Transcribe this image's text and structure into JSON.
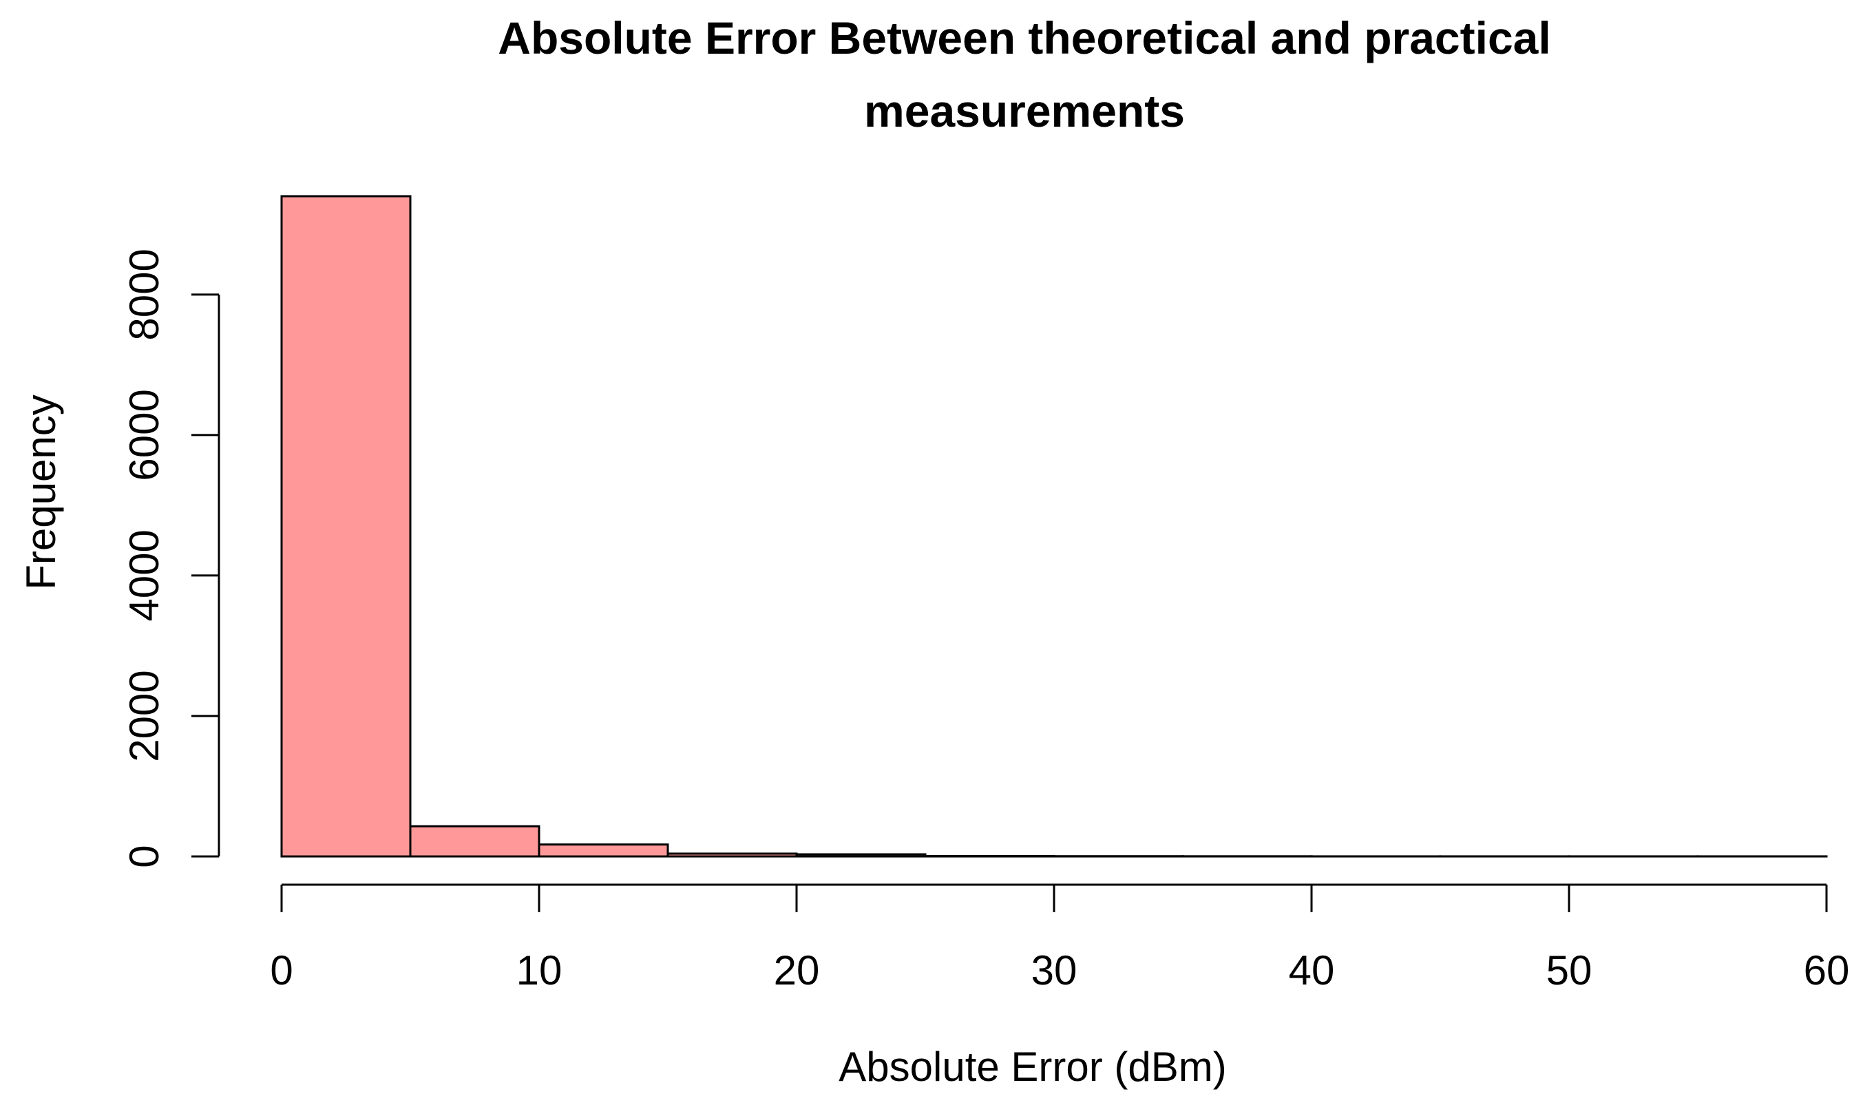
{
  "chart_data": {
    "type": "bar",
    "title": [
      "Absolute Error Between theoretical and practical",
      "measurements"
    ],
    "xlabel": "Absolute Error (dBm)",
    "ylabel": "Frequency",
    "bins": [
      {
        "x0": 0,
        "x1": 5,
        "value": 9400
      },
      {
        "x0": 5,
        "x1": 10,
        "value": 430
      },
      {
        "x0": 10,
        "x1": 15,
        "value": 170
      },
      {
        "x0": 15,
        "x1": 20,
        "value": 40
      },
      {
        "x0": 20,
        "x1": 25,
        "value": 30
      },
      {
        "x0": 25,
        "x1": 30,
        "value": 5
      },
      {
        "x0": 30,
        "x1": 35,
        "value": 3
      },
      {
        "x0": 35,
        "x1": 40,
        "value": 2
      },
      {
        "x0": 40,
        "x1": 45,
        "value": 1
      },
      {
        "x0": 45,
        "x1": 50,
        "value": 1
      },
      {
        "x0": 50,
        "x1": 55,
        "value": 1
      },
      {
        "x0": 55,
        "x1": 60,
        "value": 1
      }
    ],
    "xlim": [
      0,
      60
    ],
    "ylim": [
      0,
      9400
    ],
    "x_ticks": [
      0,
      10,
      20,
      30,
      40,
      50,
      60
    ],
    "y_ticks": [
      0,
      2000,
      4000,
      6000,
      8000
    ],
    "bar_color": "#ff9999",
    "grid": false
  }
}
